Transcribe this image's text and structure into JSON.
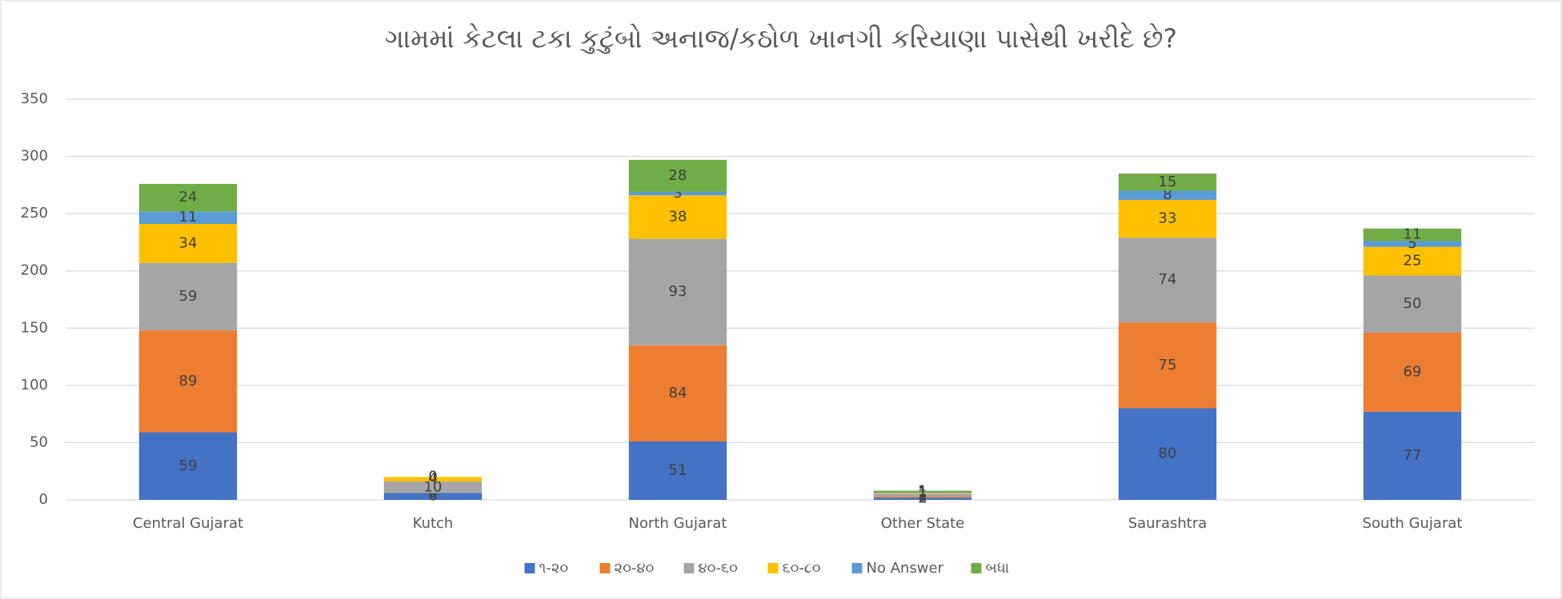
{
  "chart_data": {
    "type": "stacked_bar",
    "title": "ગામમાં કેટલા ટકા કુટુંબો અનાજ/કઠોળ ખાનગી કરિયાણા પાસેથી ખરીદે છે?",
    "categories": [
      "Central Gujarat",
      "Kutch",
      "North Gujarat",
      "Other State",
      "Saurashtra",
      "South Gujarat"
    ],
    "series": [
      {
        "name": "૧-૨૦",
        "color": "#4472c4",
        "values": [
          59,
          6,
          51,
          2,
          80,
          77
        ]
      },
      {
        "name": "૨૦-૪૦",
        "color": "#ed7d31",
        "values": [
          89,
          0,
          84,
          1,
          75,
          69
        ]
      },
      {
        "name": "૪૦-૬૦",
        "color": "#a5a5a5",
        "values": [
          59,
          10,
          93,
          2,
          74,
          50
        ]
      },
      {
        "name": "૬૦-૮૦",
        "color": "#ffc000",
        "values": [
          34,
          4,
          38,
          1,
          33,
          25
        ]
      },
      {
        "name": "No Answer",
        "color": "#5b9bd5",
        "values": [
          11,
          0,
          3,
          1,
          8,
          5
        ]
      },
      {
        "name": "બધા",
        "color": "#70ad47",
        "values": [
          24,
          0,
          28,
          1,
          15,
          11
        ]
      }
    ],
    "ylim": [
      0,
      350
    ],
    "yticks": [
      0,
      50,
      100,
      150,
      200,
      250,
      300,
      350
    ],
    "grid": true,
    "legend": "bottom"
  }
}
